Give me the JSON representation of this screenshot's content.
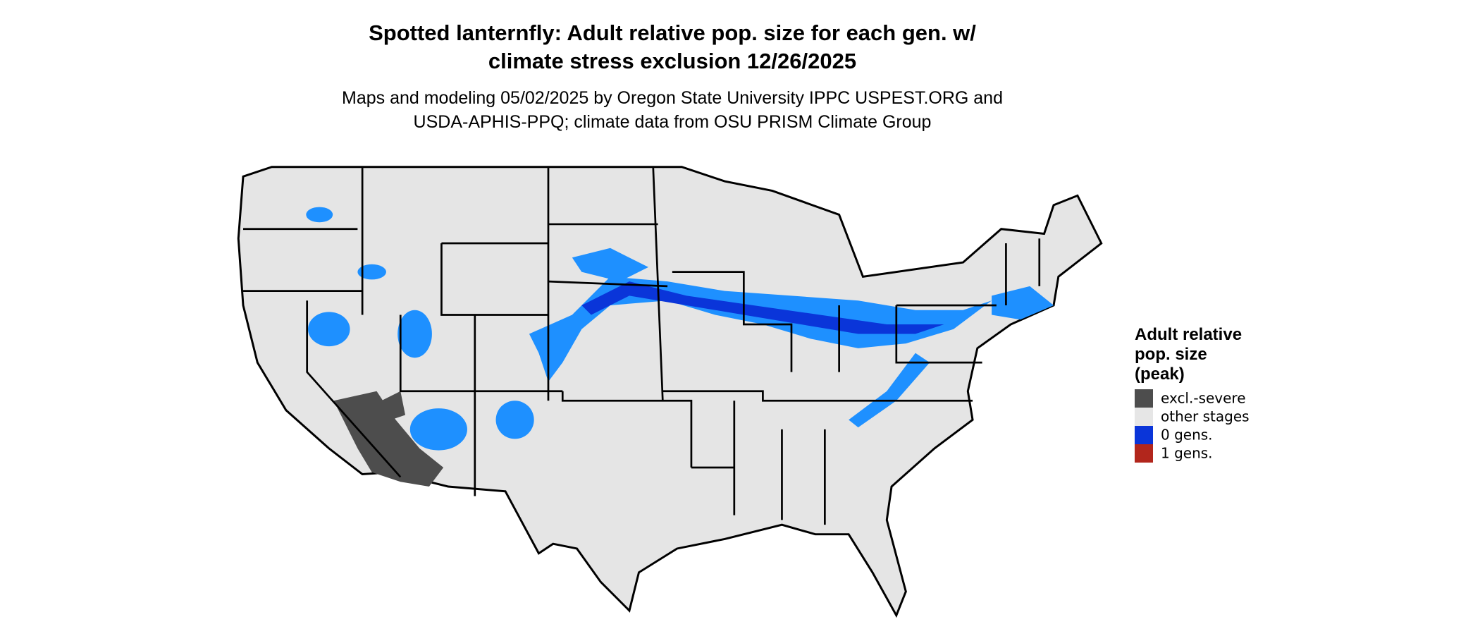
{
  "title_lines": [
    "Spotted lanternfly: Adult relative pop. size for each gen. w/",
    "climate stress exclusion 12/26/2025"
  ],
  "subtitle_lines": [
    "Maps and modeling 05/02/2025 by Oregon State University IPPC USPEST.ORG and",
    "USDA-APHIS-PPQ; climate data from OSU PRISM Climate Group"
  ],
  "legend": {
    "title_lines": [
      "Adult relative",
      "pop. size",
      "(peak)"
    ],
    "items": [
      {
        "label": "excl.-severe",
        "color": "#4d4d4d"
      },
      {
        "label": "other stages",
        "color": "#e6e6e6"
      },
      {
        "label": "0 gens.",
        "color": "#0a35d9"
      },
      {
        "label": "1 gens.",
        "color": "#b2261c"
      }
    ]
  }
}
